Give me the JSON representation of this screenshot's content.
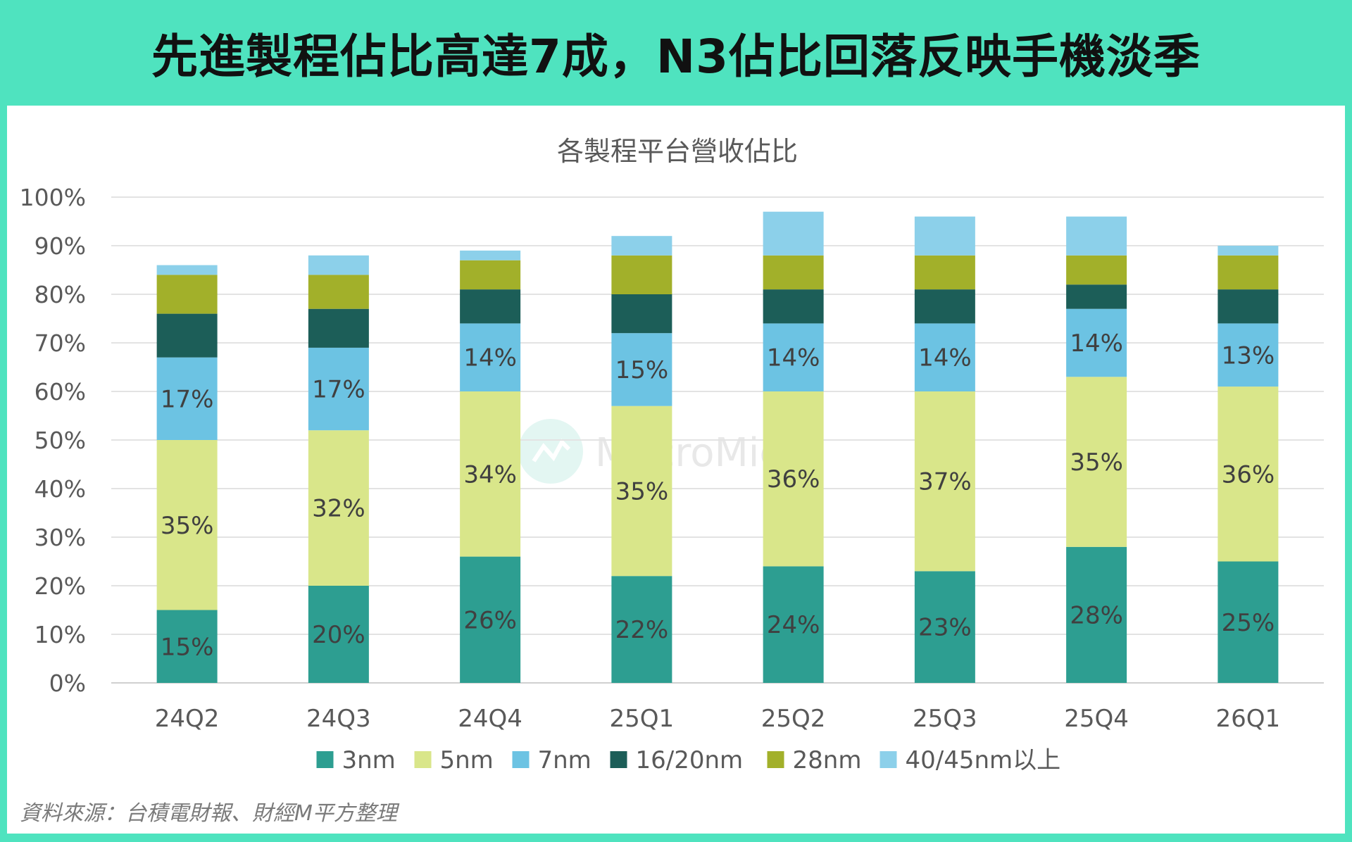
{
  "header": {
    "title": "先進製程佔比高達7成，N3佔比回落反映手機淡季"
  },
  "source_note": "資料來源：台積電財報、財經M平方整理",
  "watermark": {
    "text": "MacroMicro"
  },
  "colors": {
    "frame": "#4fe3bf",
    "3nm": "#2d9e91",
    "5nm": "#d9e68a",
    "7nm": "#6cc3e3",
    "16/20nm": "#1c5e58",
    "28nm": "#a2b02a",
    "40/45nm以上": "#8cd0ea"
  },
  "chart_data": {
    "type": "bar",
    "stacked": true,
    "title": "各製程平台營收佔比",
    "xlabel": "",
    "ylabel": "",
    "ylim": [
      0,
      100
    ],
    "y_ticks": [
      "0%",
      "10%",
      "20%",
      "30%",
      "40%",
      "50%",
      "60%",
      "70%",
      "80%",
      "90%",
      "100%"
    ],
    "grid": true,
    "legend_position": "bottom",
    "categories": [
      "24Q2",
      "24Q3",
      "24Q4",
      "25Q1",
      "25Q2",
      "25Q3",
      "25Q4",
      "26Q1"
    ],
    "series": [
      {
        "name": "3nm",
        "color": "#2d9e91",
        "values": [
          15,
          20,
          26,
          22,
          24,
          23,
          28,
          25
        ],
        "labels": [
          "15%",
          "20%",
          "26%",
          "22%",
          "24%",
          "23%",
          "28%",
          "25%"
        ]
      },
      {
        "name": "5nm",
        "color": "#d9e68a",
        "values": [
          35,
          32,
          34,
          35,
          36,
          37,
          35,
          36
        ],
        "labels": [
          "35%",
          "32%",
          "34%",
          "35%",
          "36%",
          "37%",
          "35%",
          "36%"
        ]
      },
      {
        "name": "7nm",
        "color": "#6cc3e3",
        "values": [
          17,
          17,
          14,
          15,
          14,
          14,
          14,
          13
        ],
        "labels": [
          "17%",
          "17%",
          "14%",
          "15%",
          "14%",
          "14%",
          "14%",
          "13%"
        ]
      },
      {
        "name": "16/20nm",
        "color": "#1c5e58",
        "values": [
          9,
          8,
          7,
          8,
          7,
          7,
          5,
          7
        ],
        "labels": null
      },
      {
        "name": "28nm",
        "color": "#a2b02a",
        "values": [
          8,
          7,
          6,
          8,
          7,
          7,
          6,
          7
        ],
        "labels": null
      },
      {
        "name": "40/45nm以上",
        "color": "#8cd0ea",
        "values": [
          2,
          4,
          2,
          4,
          9,
          8,
          8,
          2
        ],
        "labels": null
      }
    ]
  }
}
